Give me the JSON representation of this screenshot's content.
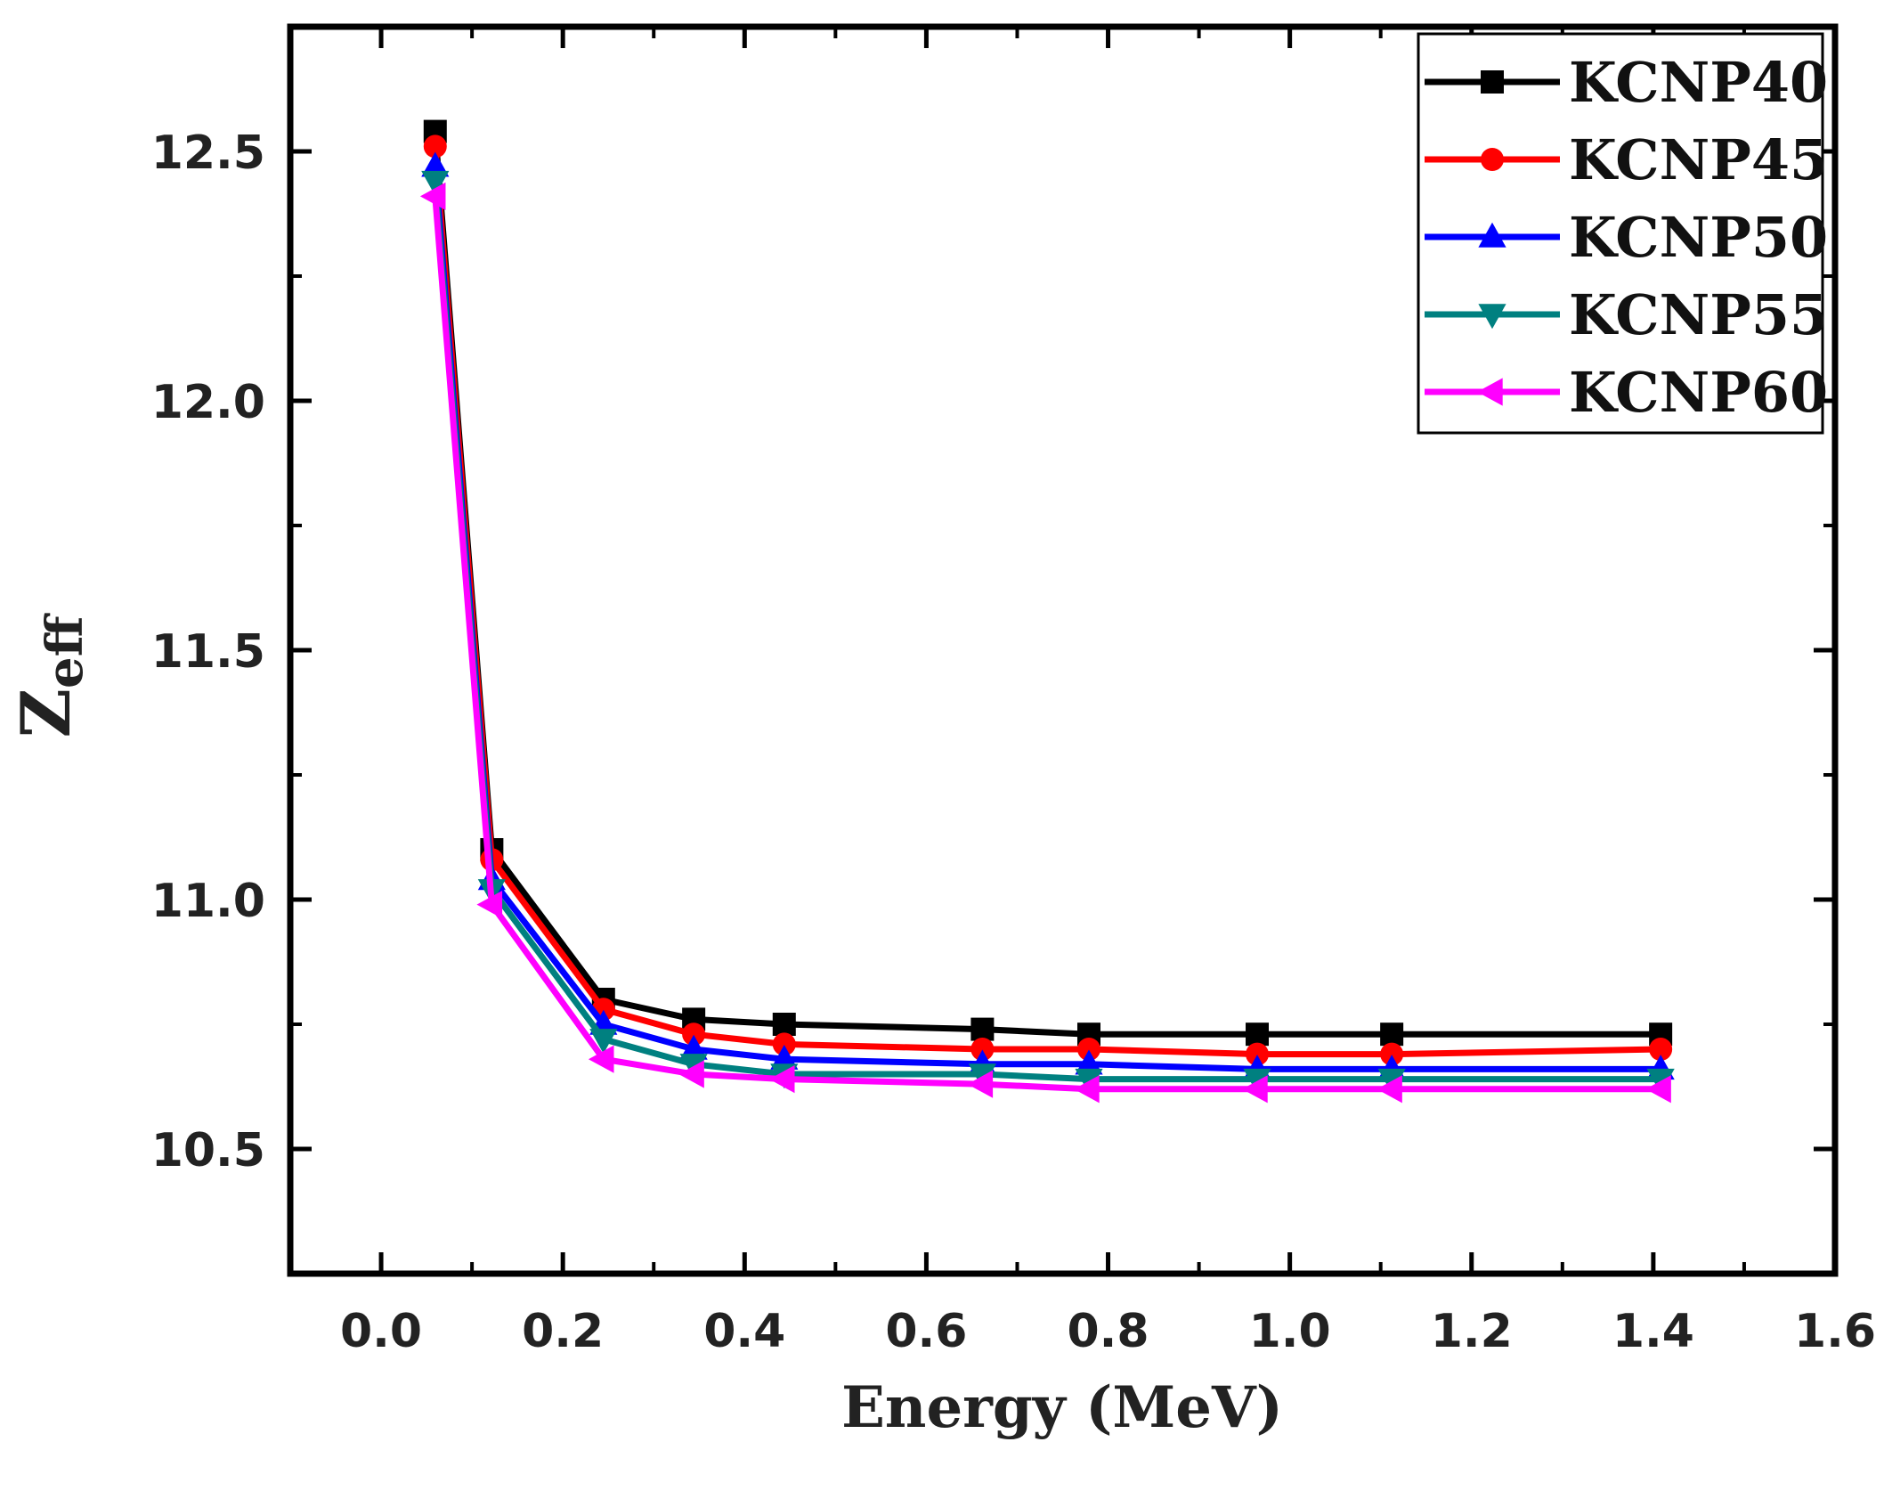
{
  "chart_data": {
    "type": "line",
    "xlabel": "Energy (MeV)",
    "ylabel_main": "Z",
    "ylabel_sub": "eff",
    "xlim": [
      -0.1,
      1.6
    ],
    "ylim": [
      10.25,
      12.75
    ],
    "xticks": [
      "0.0",
      "0.2",
      "0.4",
      "0.6",
      "0.8",
      "1.0",
      "1.2",
      "1.4",
      "1.6"
    ],
    "xtick_values": [
      0.0,
      0.2,
      0.4,
      0.6,
      0.8,
      1.0,
      1.2,
      1.4,
      1.6
    ],
    "yticks": [
      "10.5",
      "11.0",
      "11.5",
      "12.0",
      "12.5"
    ],
    "ytick_values": [
      10.5,
      11.0,
      11.5,
      12.0,
      12.5
    ],
    "legend_position": "top-right",
    "x": [
      0.0595,
      0.1218,
      0.2447,
      0.344,
      0.4436,
      0.6617,
      0.7789,
      0.9641,
      1.1122,
      1.4081
    ],
    "series": [
      {
        "name": "KCNP40",
        "color": "#000000",
        "marker": "square",
        "values": [
          12.54,
          11.1,
          10.8,
          10.76,
          10.75,
          10.74,
          10.73,
          10.73,
          10.73,
          10.73
        ]
      },
      {
        "name": "KCNP45",
        "color": "#ff0000",
        "marker": "circle",
        "values": [
          12.51,
          11.08,
          10.78,
          10.73,
          10.71,
          10.7,
          10.7,
          10.69,
          10.69,
          10.7
        ]
      },
      {
        "name": "KCNP50",
        "color": "#0000ff",
        "marker": "triangle-up",
        "values": [
          12.47,
          11.04,
          10.75,
          10.7,
          10.68,
          10.67,
          10.67,
          10.66,
          10.66,
          10.66
        ]
      },
      {
        "name": "KCNP55",
        "color": "#008080",
        "marker": "triangle-down",
        "values": [
          12.44,
          11.02,
          10.72,
          10.67,
          10.65,
          10.65,
          10.64,
          10.64,
          10.64,
          10.64
        ]
      },
      {
        "name": "KCNP60",
        "color": "#ff00ff",
        "marker": "triangle-left",
        "values": [
          12.41,
          10.99,
          10.68,
          10.65,
          10.64,
          10.63,
          10.62,
          10.62,
          10.62,
          10.62
        ]
      }
    ]
  }
}
